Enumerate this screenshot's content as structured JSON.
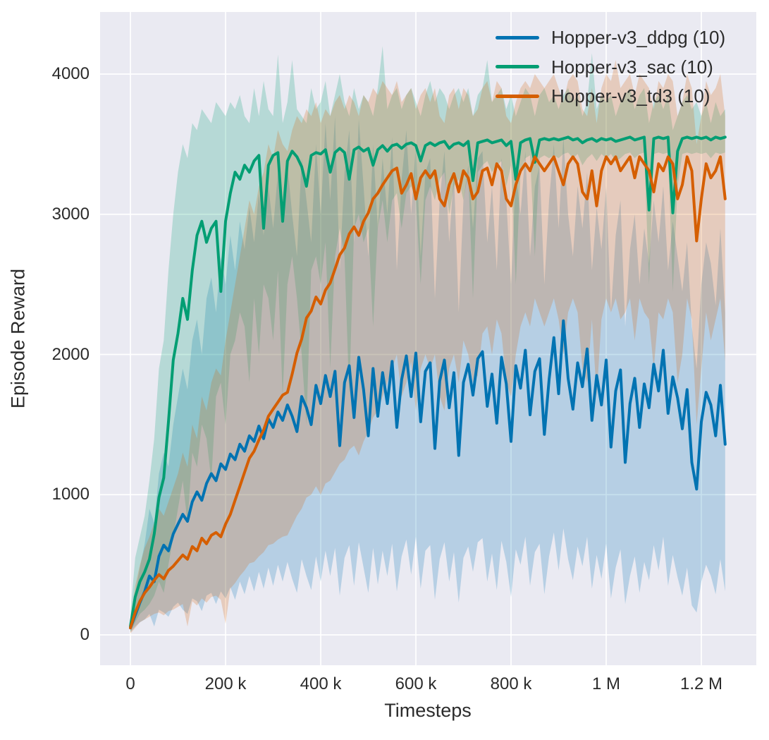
{
  "chart_data": {
    "type": "line",
    "title": "",
    "xlabel": "Timesteps",
    "ylabel": "Episode Reward",
    "grid": true,
    "legend_position": "upper right",
    "legend_frame": false,
    "colors": {
      "figure_bg": "#ffffff",
      "plot_bg": "#eaeaf2",
      "grid": "#ffffff",
      "text": "#2b2b2b"
    },
    "xlim": [
      0,
      1250000
    ],
    "ylim_ticks": [
      0,
      4000
    ],
    "x_step": 10000,
    "xticks": [
      [
        0,
        "0"
      ],
      [
        200000,
        "200 k"
      ],
      [
        400000,
        "400 k"
      ],
      [
        600000,
        "600 k"
      ],
      [
        800000,
        "800 k"
      ],
      [
        1000000,
        "1 M"
      ],
      [
        1200000,
        "1.2 M"
      ]
    ],
    "yticks": [
      [
        0,
        "0"
      ],
      [
        1000,
        "1000"
      ],
      [
        2000,
        "2000"
      ],
      [
        3000,
        "3000"
      ],
      [
        4000,
        "4000"
      ]
    ],
    "band_opacity": 0.22,
    "series": [
      {
        "id": "ddpg",
        "name": "Hopper-v3_ddpg (10)",
        "color": "#0173b2",
        "mean": [
          50,
          140,
          230,
          310,
          420,
          380,
          560,
          640,
          600,
          720,
          790,
          860,
          810,
          950,
          1020,
          960,
          1080,
          1150,
          1100,
          1220,
          1180,
          1290,
          1250,
          1360,
          1310,
          1420,
          1380,
          1490,
          1400,
          1540,
          1480,
          1590,
          1530,
          1640,
          1560,
          1450,
          1700,
          1620,
          1500,
          1780,
          1650,
          1850,
          1700,
          1880,
          1350,
          1800,
          1920,
          1550,
          1980,
          1750,
          1420,
          1900,
          1560,
          1870,
          1650,
          1950,
          1480,
          1820,
          1990,
          1700,
          2010,
          1520,
          1880,
          1940,
          1330,
          1810,
          1960,
          1620,
          1870,
          1280,
          1800,
          1930,
          1710,
          1970,
          2020,
          1630,
          1860,
          1510,
          1980,
          1790,
          1380,
          1920,
          1760,
          2030,
          1570,
          1880,
          1970,
          1430,
          1820,
          2120,
          1720,
          2240,
          1830,
          1610,
          1940,
          1770,
          2040,
          1530,
          1850,
          1640,
          1960,
          1340,
          1740,
          1890,
          1230,
          1650,
          1830,
          1480,
          1790,
          1620,
          1930,
          1740,
          2030,
          1580,
          1840,
          1690,
          1470,
          1750,
          1230,
          1040,
          1520,
          1730,
          1640,
          1420,
          1780,
          1360
        ],
        "lo": [
          20,
          60,
          90,
          110,
          150,
          60,
          180,
          160,
          130,
          200,
          230,
          180,
          150,
          260,
          240,
          170,
          280,
          300,
          220,
          310,
          260,
          340,
          250,
          380,
          290,
          420,
          310,
          450,
          330,
          480,
          350,
          500,
          380,
          520,
          400,
          300,
          540,
          420,
          320,
          560,
          380,
          600,
          420,
          620,
          280,
          550,
          640,
          350,
          660,
          480,
          300,
          620,
          360,
          600,
          420,
          650,
          310,
          560,
          680,
          430,
          700,
          330,
          600,
          640,
          250,
          540,
          660,
          380,
          590,
          230,
          550,
          630,
          450,
          660,
          690,
          380,
          580,
          320,
          670,
          520,
          270,
          610,
          500,
          700,
          350,
          590,
          650,
          290,
          560,
          730,
          460,
          760,
          540,
          390,
          630,
          490,
          700,
          330,
          570,
          400,
          650,
          260,
          480,
          610,
          220,
          420,
          560,
          300,
          520,
          390,
          640,
          460,
          700,
          350,
          570,
          410,
          280,
          480,
          210,
          160,
          380,
          500,
          420,
          290,
          540,
          310
        ],
        "hi": [
          120,
          300,
          480,
          650,
          900,
          800,
          1150,
          1300,
          1200,
          1500,
          1700,
          1900,
          1750,
          2100,
          2250,
          2000,
          2400,
          2550,
          2300,
          2700,
          2500,
          2850,
          2600,
          2950,
          2750,
          3050,
          2800,
          3150,
          2850,
          3200,
          2900,
          3300,
          2950,
          3350,
          3000,
          2700,
          3400,
          3100,
          2800,
          3500,
          3000,
          3650,
          3100,
          3700,
          2600,
          3300,
          3600,
          2800,
          3680,
          3200,
          2700,
          3500,
          2900,
          3400,
          3000,
          3550,
          2600,
          3250,
          3600,
          3000,
          3500,
          2700,
          3300,
          3400,
          2400,
          3100,
          3450,
          2800,
          3300,
          2300,
          3100,
          3350,
          2900,
          3400,
          3450,
          2800,
          3200,
          2600,
          3400,
          3100,
          2500,
          3300,
          3000,
          3450,
          2700,
          3200,
          3350,
          2500,
          3100,
          3500,
          2900,
          3550,
          3000,
          2700,
          3200,
          2900,
          3300,
          2600,
          3050,
          2750,
          3200,
          2300,
          2850,
          3100,
          2200,
          2750,
          3000,
          2500,
          2900,
          2650,
          3100,
          2800,
          3200,
          2600,
          2950,
          2700,
          2450,
          2800,
          2200,
          1900,
          2500,
          2800,
          2650,
          2350,
          2900,
          2300
        ]
      },
      {
        "id": "sac",
        "name": "Hopper-v3_sac (10)",
        "color": "#029e73",
        "mean": [
          60,
          270,
          380,
          450,
          540,
          720,
          980,
          1120,
          1520,
          1960,
          2150,
          2400,
          2250,
          2600,
          2850,
          2950,
          2800,
          2900,
          2950,
          2450,
          2950,
          3150,
          3300,
          3250,
          3350,
          3300,
          3380,
          3420,
          2900,
          3350,
          3420,
          3440,
          2950,
          3380,
          3450,
          3410,
          3340,
          3200,
          3420,
          3440,
          3430,
          3460,
          3300,
          3440,
          3470,
          3440,
          3250,
          3460,
          3480,
          3450,
          3470,
          3350,
          3460,
          3490,
          3450,
          3490,
          3500,
          3470,
          3500,
          3510,
          3490,
          3380,
          3490,
          3510,
          3490,
          3510,
          3520,
          3470,
          3500,
          3510,
          3490,
          3520,
          3240,
          3510,
          3520,
          3530,
          3510,
          3520,
          3530,
          3490,
          3520,
          3250,
          3510,
          3530,
          3540,
          3370,
          3530,
          3540,
          3530,
          3540,
          3530,
          3540,
          3550,
          3530,
          3540,
          3510,
          3530,
          3540,
          3520,
          3540,
          3530,
          3540,
          3520,
          3530,
          3540,
          3550,
          3530,
          3540,
          3550,
          3030,
          3540,
          3550,
          3540,
          3550,
          3010,
          3450,
          3540,
          3550,
          3540,
          3550,
          3540,
          3550,
          3530,
          3550,
          3540,
          3550
        ],
        "lo": [
          20,
          90,
          150,
          180,
          220,
          280,
          380,
          300,
          500,
          700,
          900,
          1100,
          800,
          1300,
          1200,
          1500,
          1400,
          1100,
          1700,
          1800,
          1500,
          2000,
          2100,
          2300,
          2200,
          1800,
          2400,
          2000,
          2500,
          2400,
          2100,
          2600,
          1700,
          2500,
          2700,
          2400,
          2000,
          1500,
          2600,
          2700,
          2500,
          2800,
          1900,
          2700,
          2900,
          2700,
          1700,
          2900,
          3000,
          2800,
          2900,
          2200,
          2900,
          3100,
          2800,
          3100,
          3150,
          2900,
          3150,
          3200,
          3100,
          2500,
          3100,
          3200,
          3100,
          3250,
          3300,
          3000,
          3200,
          3250,
          3100,
          3300,
          2400,
          3300,
          3350,
          3380,
          3300,
          3350,
          3380,
          3200,
          3350,
          2500,
          3300,
          3400,
          3420,
          2700,
          3400,
          3420,
          3400,
          3420,
          3400,
          3430,
          3440,
          3400,
          3430,
          3350,
          3400,
          3430,
          3380,
          3430,
          3400,
          3430,
          3380,
          3400,
          3430,
          3440,
          3400,
          3430,
          3440,
          2500,
          3430,
          3440,
          3430,
          3440,
          2450,
          3200,
          3430,
          3440,
          3430,
          3440,
          3430,
          3440,
          3400,
          3440,
          3430,
          3440
        ],
        "hi": [
          150,
          550,
          700,
          850,
          1100,
          1400,
          1900,
          2100,
          2600,
          3000,
          3300,
          3500,
          3400,
          3650,
          3600,
          3750,
          3700,
          3650,
          3800,
          3750,
          3700,
          3800,
          3750,
          3850,
          3700,
          3650,
          3900,
          3700,
          3950,
          3750,
          3700,
          4140,
          3650,
          3800,
          4100,
          3750,
          3700,
          3650,
          3900,
          3750,
          3800,
          3950,
          3700,
          3850,
          4000,
          3800,
          3700,
          3900,
          3750,
          3850,
          3800,
          3700,
          3900,
          4200,
          3750,
          3850,
          3900,
          3750,
          3850,
          3900,
          3800,
          3700,
          3850,
          3950,
          3800,
          3900,
          3850,
          3750,
          3850,
          3900,
          3800,
          3900,
          3700,
          3850,
          3900,
          4100,
          3800,
          3850,
          3900,
          3750,
          3850,
          3700,
          3800,
          3900,
          3850,
          3700,
          3850,
          3900,
          3800,
          3850,
          3750,
          3850,
          3900,
          3800,
          3850,
          3700,
          3800,
          4150,
          3750,
          3850,
          3800,
          3850,
          3700,
          3800,
          3850,
          3900,
          3750,
          3850,
          3900,
          3650,
          3800,
          3850,
          3750,
          3850,
          3600,
          3700,
          3800,
          3850,
          3750,
          3800,
          3700,
          3800,
          3650,
          3800,
          3700,
          3750
        ]
      },
      {
        "id": "td3",
        "name": "Hopper-v3_td3 (10)",
        "color": "#d55e00",
        "mean": [
          50,
          160,
          240,
          300,
          340,
          390,
          430,
          400,
          460,
          490,
          530,
          570,
          540,
          630,
          600,
          690,
          650,
          710,
          730,
          700,
          790,
          860,
          960,
          1060,
          1160,
          1260,
          1310,
          1390,
          1460,
          1560,
          1610,
          1660,
          1710,
          1730,
          1860,
          2010,
          2110,
          2260,
          2310,
          2410,
          2360,
          2460,
          2510,
          2610,
          2710,
          2760,
          2860,
          2910,
          2850,
          2950,
          3010,
          3110,
          3150,
          3210,
          3260,
          3310,
          3330,
          3150,
          3210,
          3290,
          3110,
          3260,
          3310,
          3260,
          3310,
          3110,
          3060,
          3210,
          3290,
          3160,
          3310,
          3260,
          3110,
          3160,
          3310,
          3330,
          3210,
          3360,
          3310,
          3110,
          3060,
          3210,
          3310,
          3360,
          3310,
          3410,
          3360,
          3310,
          3360,
          3410,
          3310,
          3210,
          3360,
          3410,
          3360,
          3160,
          3110,
          3310,
          3060,
          3310,
          3410,
          3360,
          3410,
          3310,
          3360,
          3410,
          3260,
          3410,
          3360,
          3310,
          3160,
          3360,
          3310,
          3410,
          3360,
          3110,
          3210,
          3410,
          3310,
          2810,
          3110,
          3360,
          3260,
          3310,
          3410,
          3110
        ],
        "lo": [
          10,
          50,
          90,
          110,
          130,
          150,
          160,
          140,
          170,
          180,
          200,
          220,
          60,
          240,
          210,
          260,
          230,
          270,
          280,
          250,
          80,
          330,
          370,
          420,
          460,
          510,
          520,
          560,
          590,
          640,
          650,
          680,
          700,
          710,
          780,
          850,
          900,
          980,
          1000,
          1060,
          1000,
          1080,
          1100,
          1160,
          1220,
          1250,
          1320,
          1350,
          1280,
          1380,
          1450,
          1550,
          1600,
          1700,
          1800,
          1900,
          2000,
          1700,
          1800,
          1950,
          1600,
          1900,
          2000,
          1900,
          2000,
          1700,
          1600,
          1900,
          2000,
          1800,
          2100,
          2000,
          1800,
          1850,
          2150,
          2200,
          2000,
          2250,
          2150,
          1800,
          1700,
          2000,
          2200,
          2300,
          2200,
          2400,
          2300,
          2200,
          2300,
          2400,
          2250,
          2000,
          2300,
          2400,
          2300,
          1900,
          1800,
          2250,
          1700,
          2250,
          2400,
          2300,
          2400,
          2250,
          2300,
          2400,
          2100,
          2400,
          2300,
          2250,
          1900,
          2300,
          2250,
          2400,
          2300,
          1800,
          2000,
          2400,
          2250,
          1500,
          1900,
          2300,
          2100,
          2250,
          2400,
          1950
        ],
        "hi": [
          100,
          350,
          500,
          620,
          700,
          800,
          900,
          850,
          950,
          1050,
          1150,
          1300,
          1200,
          1500,
          1400,
          1700,
          1600,
          1800,
          1900,
          1850,
          2100,
          2300,
          2500,
          2700,
          2900,
          3100,
          3000,
          3200,
          3300,
          3500,
          3400,
          3600,
          3500,
          3450,
          3600,
          3700,
          3650,
          3750,
          3700,
          3800,
          3650,
          3750,
          3700,
          3800,
          3850,
          3750,
          3850,
          3800,
          3700,
          3850,
          3800,
          3900,
          3850,
          3950,
          3900,
          3850,
          3950,
          3800,
          3850,
          3900,
          3750,
          3850,
          3900,
          3800,
          3900,
          3700,
          3650,
          3850,
          3900,
          3750,
          3900,
          3850,
          3700,
          3750,
          3900,
          3950,
          3800,
          3950,
          3900,
          3700,
          3650,
          3800,
          3900,
          3950,
          3900,
          4000,
          3950,
          3900,
          3950,
          4000,
          3900,
          3800,
          3950,
          4000,
          3950,
          3750,
          3700,
          3900,
          3650,
          3900,
          4000,
          3950,
          4100,
          3900,
          3950,
          4000,
          3850,
          4000,
          3950,
          3900,
          3750,
          3950,
          3900,
          4000,
          3950,
          3700,
          3800,
          4000,
          3900,
          3500,
          3700,
          3950,
          3850,
          3900,
          4000,
          3700
        ]
      }
    ]
  }
}
